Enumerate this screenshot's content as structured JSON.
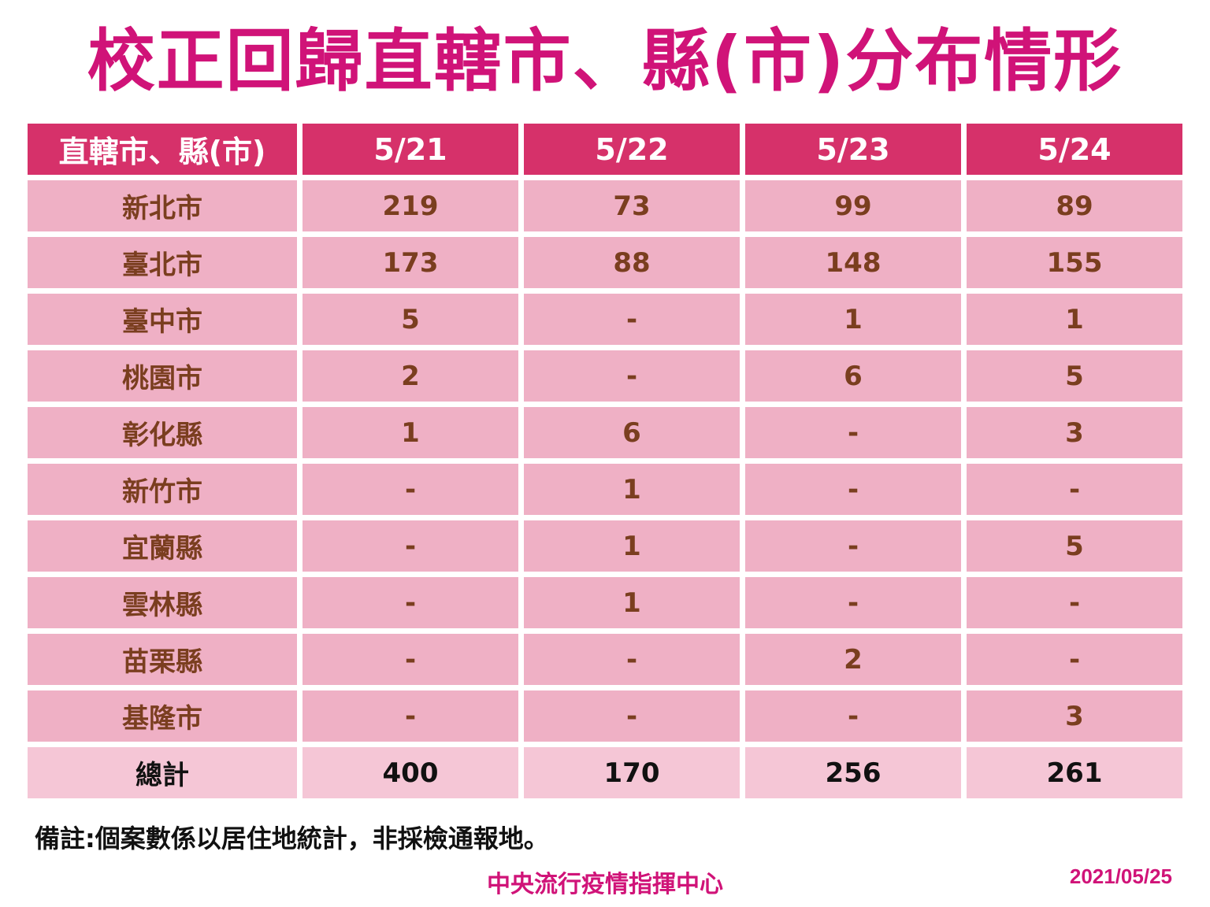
{
  "title": "校正回歸直轄市、縣(市)分布情形",
  "colors": {
    "title": "#d01378",
    "header_bg": "#d6316a",
    "row_bg": "#efb0c5",
    "total_bg": "#f5c6d6",
    "cell_text": "#7a3e1f"
  },
  "table": {
    "headers": [
      "直轄市、縣(市)",
      "5/21",
      "5/22",
      "5/23",
      "5/24"
    ],
    "rows": [
      [
        "新北市",
        "219",
        "73",
        "99",
        "89"
      ],
      [
        "臺北市",
        "173",
        "88",
        "148",
        "155"
      ],
      [
        "臺中市",
        "5",
        "-",
        "1",
        "1"
      ],
      [
        "桃園市",
        "2",
        "-",
        "6",
        "5"
      ],
      [
        "彰化縣",
        "1",
        "6",
        "-",
        "3"
      ],
      [
        "新竹市",
        "-",
        "1",
        "-",
        "-"
      ],
      [
        "宜蘭縣",
        "-",
        "1",
        "-",
        "5"
      ],
      [
        "雲林縣",
        "-",
        "1",
        "-",
        "-"
      ],
      [
        "苗栗縣",
        "-",
        "-",
        "2",
        "-"
      ],
      [
        "基隆市",
        "-",
        "-",
        "-",
        "3"
      ]
    ],
    "total": [
      "總計",
      "400",
      "170",
      "256",
      "261"
    ]
  },
  "note": "備註:個案數係以居住地統計，非採檢通報地。",
  "footer": {
    "org": "中央流行疫情指揮中心",
    "date": "2021/05/25"
  }
}
